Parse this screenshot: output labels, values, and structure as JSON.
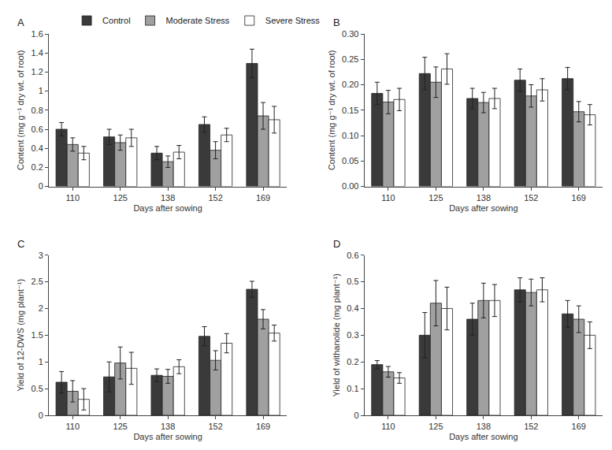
{
  "chart_data": [
    {
      "type": "bar",
      "title": "A",
      "x_label": "Days after sowing",
      "y_label": "Content (mg g⁻¹ dry wt. of root)",
      "categories": [
        "110",
        "125",
        "138",
        "152",
        "169"
      ],
      "ylim": [
        0,
        1.6
      ],
      "yticks": [
        0,
        0.2,
        0.4,
        0.6,
        0.8,
        1,
        1.2,
        1.4,
        1.6
      ],
      "grid": false,
      "legend": "top left",
      "series": [
        {
          "name": "Control",
          "color": "#3a3a3a",
          "values": [
            0.6,
            0.52,
            0.35,
            0.65,
            1.29
          ],
          "error": [
            0.07,
            0.08,
            0.07,
            0.08,
            0.15
          ]
        },
        {
          "name": "Moderate Stress",
          "color": "#a0a0a0",
          "values": [
            0.44,
            0.46,
            0.26,
            0.38,
            0.74
          ],
          "error": [
            0.07,
            0.08,
            0.06,
            0.09,
            0.14
          ]
        },
        {
          "name": "Severe Stress",
          "color": "#ffffff",
          "values": [
            0.35,
            0.51,
            0.36,
            0.54,
            0.7
          ],
          "error": [
            0.07,
            0.09,
            0.07,
            0.07,
            0.14
          ]
        }
      ]
    },
    {
      "type": "bar",
      "title": "B",
      "x_label": "Days after sowing",
      "y_label": "Content (mg g⁻¹ dry wt. of root)",
      "categories": [
        "110",
        "125",
        "138",
        "152",
        "169"
      ],
      "ylim": [
        0,
        0.3
      ],
      "yticks": [
        {
          "value": 0,
          "label": "0.00"
        },
        {
          "value": 0.05,
          "label": "0.05"
        },
        {
          "value": 0.1,
          "label": "0.10"
        },
        {
          "value": 0.15,
          "label": "0.15"
        },
        {
          "value": 0.2,
          "label": "0.20"
        },
        {
          "value": 0.25,
          "label": "0.25"
        },
        {
          "value": 0.3,
          "label": "0.30"
        }
      ],
      "grid": false,
      "series": [
        {
          "name": "Control",
          "color": "#3a3a3a",
          "values": [
            0.183,
            0.222,
            0.173,
            0.209,
            0.212
          ],
          "error": [
            0.022,
            0.032,
            0.02,
            0.022,
            0.022
          ]
        },
        {
          "name": "Moderate Stress",
          "color": "#a0a0a0",
          "values": [
            0.166,
            0.205,
            0.165,
            0.178,
            0.147
          ],
          "error": [
            0.023,
            0.03,
            0.02,
            0.022,
            0.02
          ]
        },
        {
          "name": "Severe Stress",
          "color": "#ffffff",
          "values": [
            0.171,
            0.231,
            0.173,
            0.19,
            0.141
          ],
          "error": [
            0.022,
            0.03,
            0.02,
            0.022,
            0.02
          ]
        }
      ]
    },
    {
      "type": "bar",
      "title": "C",
      "x_label": "Days after sowing",
      "y_label": "Yield of 12-DWS (mg plant⁻¹)",
      "categories": [
        "110",
        "125",
        "138",
        "152",
        "169"
      ],
      "ylim": [
        0,
        3
      ],
      "yticks": [
        0,
        0.5,
        1,
        1.5,
        2,
        2.5,
        3
      ],
      "grid": false,
      "series": [
        {
          "name": "Control",
          "color": "#3a3a3a",
          "values": [
            0.62,
            0.72,
            0.75,
            1.48,
            2.36
          ],
          "error": [
            0.2,
            0.28,
            0.12,
            0.18,
            0.15
          ]
        },
        {
          "name": "Moderate Stress",
          "color": "#a0a0a0",
          "values": [
            0.45,
            0.98,
            0.73,
            1.03,
            1.8
          ],
          "error": [
            0.2,
            0.3,
            0.13,
            0.18,
            0.18
          ]
        },
        {
          "name": "Severe Stress",
          "color": "#ffffff",
          "values": [
            0.3,
            0.88,
            0.91,
            1.35,
            1.54
          ],
          "error": [
            0.2,
            0.3,
            0.13,
            0.18,
            0.15
          ]
        }
      ]
    },
    {
      "type": "bar",
      "title": "D",
      "x_label": "Days after sowing",
      "y_label": "Yield of withanolide (mg plant⁻¹)",
      "categories": [
        "110",
        "125",
        "138",
        "152",
        "169"
      ],
      "ylim": [
        0,
        0.6
      ],
      "yticks": [
        0,
        0.1,
        0.2,
        0.3,
        0.4,
        0.5,
        0.6
      ],
      "grid": false,
      "series": [
        {
          "name": "Control",
          "color": "#3a3a3a",
          "values": [
            0.19,
            0.3,
            0.36,
            0.47,
            0.38
          ],
          "error": [
            0.015,
            0.085,
            0.06,
            0.045,
            0.05
          ]
        },
        {
          "name": "Moderate Stress",
          "color": "#a0a0a0",
          "values": [
            0.163,
            0.42,
            0.43,
            0.46,
            0.36
          ],
          "error": [
            0.02,
            0.085,
            0.065,
            0.05,
            0.05
          ]
        },
        {
          "name": "Severe Stress",
          "color": "#ffffff",
          "values": [
            0.14,
            0.4,
            0.43,
            0.47,
            0.3
          ],
          "error": [
            0.02,
            0.08,
            0.06,
            0.045,
            0.05
          ]
        }
      ]
    }
  ]
}
